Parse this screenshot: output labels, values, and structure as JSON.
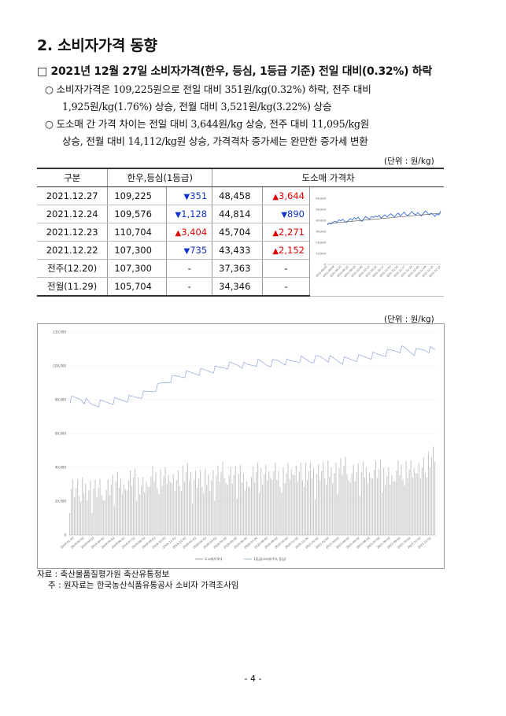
{
  "heading": "2. 소비자가격 동향",
  "subheading": "□ 2021년 12월 27일 소비자가격(한우, 등심, 1등급 기준) 전일 대비(0.32%) 하락",
  "bullets": [
    {
      "line1": "○ 소비자가격은 109,225원으로 전일 대비 351원/kg(0.32%) 하락, 전주 대비",
      "line2": "1,925원/kg(1.76%) 상승, 전월 대비 3,521원/kg(3.22%) 상승"
    },
    {
      "line1": "○ 도소매 간 가격 차이는 전일 대비 3,644원/kg 상승, 전주 대비 11,095/kg원",
      "line2": "상승, 전월 대비 14,112/kg원 상승, 가격격차 증가세는 완만한 증가세 변환"
    }
  ],
  "table": {
    "unit": "(단위 : 원/kg)",
    "headers": {
      "col1": "구분",
      "col2": "한우,등심(1등급)",
      "col3": "도소매 가격차"
    },
    "rows": [
      {
        "label": "2021.12.27",
        "price": "109,225",
        "price_change": "351",
        "price_dir": "down",
        "gap": "48,458",
        "gap_change": "3,644",
        "gap_dir": "up"
      },
      {
        "label": "2021.12.24",
        "price": "109,576",
        "price_change": "1,128",
        "price_dir": "down",
        "gap": "44,814",
        "gap_change": "890",
        "gap_dir": "down"
      },
      {
        "label": "2021.12.23",
        "price": "110,704",
        "price_change": "3,404",
        "price_dir": "up",
        "gap": "45,704",
        "gap_change": "2,271",
        "gap_dir": "up"
      },
      {
        "label": "2021.12.22",
        "price": "107,300",
        "price_change": "735",
        "price_dir": "down",
        "gap": "43,433",
        "gap_change": "2,152",
        "gap_dir": "up"
      },
      {
        "label": "전주(12.20)",
        "price": "107,300",
        "price_change": "-",
        "price_dir": "none",
        "gap": "37,363",
        "gap_change": "-",
        "gap_dir": "none"
      },
      {
        "label": "전월(11.29)",
        "price": "105,704",
        "price_change": "-",
        "price_dir": "none",
        "gap": "34,346",
        "gap_change": "-",
        "gap_dir": "none"
      }
    ]
  },
  "colors": {
    "up": "#e00000",
    "down": "#1133cc",
    "gap_line": "#3a6fd8",
    "trend": "#555555",
    "bars": "#c8c8c8",
    "price_line": "#8ea3d9"
  },
  "chart_data": [
    {
      "type": "line",
      "description_role": "small inset chart: 도소매 가격차 with trendline",
      "y_ticks": [
        "60,000",
        "50,000",
        "40,000",
        "30,000",
        "20,000",
        "10,000",
        "0"
      ],
      "ylim": [
        0,
        60000
      ],
      "x_ticks": [
        "2021-09-01",
        "2021-09-08",
        "2021-09-15",
        "2021-09-22",
        "2021-09-29",
        "2021-10-06",
        "2021-10-13",
        "2021-10-20",
        "2021-10-27",
        "2021-11-03",
        "2021-11-10",
        "2021-11-17",
        "2021-11-24",
        "2021-12-01",
        "2021-12-08",
        "2021-12-15",
        "2021-12-22"
      ],
      "series": [
        {
          "values": [
            36000,
            37500,
            36500,
            38500,
            39000,
            38000,
            40500,
            39500,
            41000,
            39000,
            38000,
            40000,
            41500,
            40000,
            42500,
            41000,
            43000,
            40500,
            39000,
            41500,
            43500,
            42000,
            41000,
            43500,
            42500,
            44000,
            43000,
            44500,
            42000,
            43500,
            45000,
            43000,
            44500,
            46000,
            44500,
            43000,
            45500,
            46500,
            44000,
            45500,
            47500,
            45000,
            44500,
            46000,
            48000,
            46000,
            45000,
            47000,
            45500,
            44000,
            46500,
            48500,
            47000,
            45000,
            46500,
            45500,
            43500,
            45704,
            44814,
            48458
          ]
        }
      ],
      "trendline": [
        37000,
        46500
      ]
    },
    {
      "type": "bar",
      "description_role": "large chart: 도소매가격차 (bars) and 1등급(소비자가격, 등심) (line)",
      "y_ticks": [
        "120,000",
        "100,000",
        "80,000",
        "60,000",
        "40,000",
        "20,000",
        "0"
      ],
      "ylim": [
        0,
        120000
      ],
      "x_ticks": [
        "2019-01-02",
        "2019-02-02",
        "2019-03-02",
        "2019-04-02",
        "2019-05-02",
        "2019-06-02",
        "2019-07-02",
        "2019-08-02",
        "2019-09-02",
        "2019-10-02",
        "2019-11-02",
        "2019-12-02",
        "2020-01-02",
        "2020-02-02",
        "2020-03-02",
        "2020-04-02",
        "2020-05-02",
        "2020-06-02",
        "2020-07-02",
        "2020-08-02",
        "2020-09-02",
        "2020-10-02",
        "2020-11-02",
        "2020-12-02",
        "2021-01-02",
        "2021-02-02",
        "2021-03-02",
        "2021-04-02",
        "2021-05-02",
        "2021-06-02",
        "2021-07-02",
        "2021-08-02",
        "2021-09-02",
        "2021-10-02",
        "2021-11-02",
        "2021-12-02"
      ],
      "series": [
        {
          "name": "도소매가격차",
          "role": "bars",
          "anchors": [
            29000,
            27000,
            28000,
            26000,
            30000,
            31000,
            33000,
            30000,
            34000,
            35000,
            33000,
            36000,
            34000,
            32000,
            35000,
            37000,
            35000,
            33000,
            36000,
            38000,
            35000,
            37000,
            39000,
            36000,
            38000,
            37000,
            40000,
            38000,
            36000,
            39000,
            37000,
            35000,
            40000,
            38000,
            42000,
            46000
          ]
        },
        {
          "name": "1등급(소비자가격, 등심)",
          "role": "line",
          "anchors": [
            80000,
            81000,
            77000,
            78000,
            79000,
            80000,
            81000,
            83000,
            86000,
            90000,
            93000,
            95000,
            96000,
            97000,
            98000,
            100000,
            101000,
            100000,
            102000,
            101000,
            103000,
            102000,
            104000,
            103000,
            105000,
            104000,
            103000,
            104000,
            105000,
            106000,
            107000,
            109000,
            110000,
            108000,
            110000,
            109000
          ]
        }
      ]
    }
  ],
  "notes": {
    "source": "자료 : 축산물품질평가원 축산유통정보",
    "note": "주 : 원자료는 한국농산식품유통공사 소비자 가격조사임"
  },
  "page_number": "- 4 -"
}
